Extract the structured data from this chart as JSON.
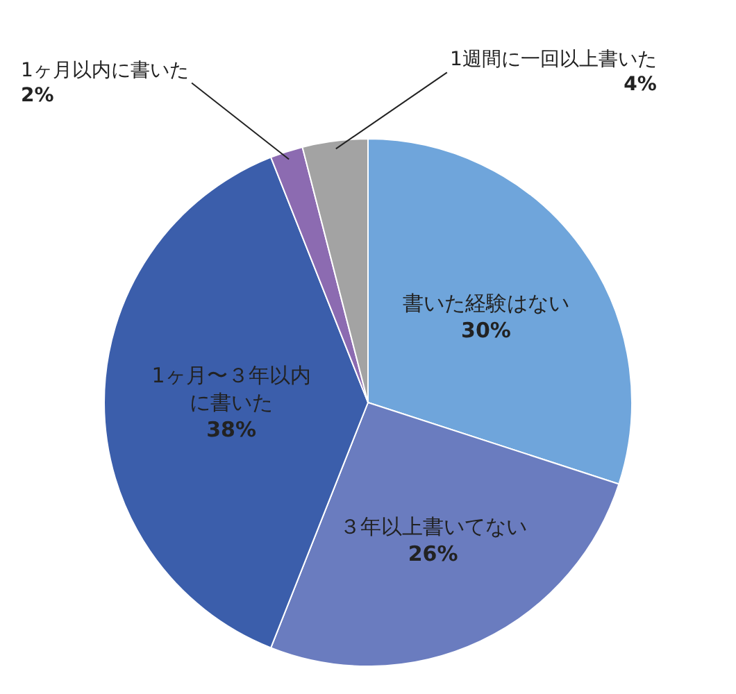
{
  "chart_data": {
    "type": "pie",
    "categories": [
      "書いた経験はない",
      "３年以上書いてない",
      "1ヶ月〜３年以内に書いた",
      "1ヶ月以内に書いた",
      "1週間に一回以上書いた"
    ],
    "values": [
      30,
      26,
      38,
      2,
      4
    ],
    "value_labels": [
      "30%",
      "26%",
      "38%",
      "2%",
      "4%"
    ],
    "colors": [
      "#6fa5db",
      "#6a7cbf",
      "#3b5eab",
      "#8c6bb1",
      "#a3a3a3"
    ],
    "legend": false
  }
}
